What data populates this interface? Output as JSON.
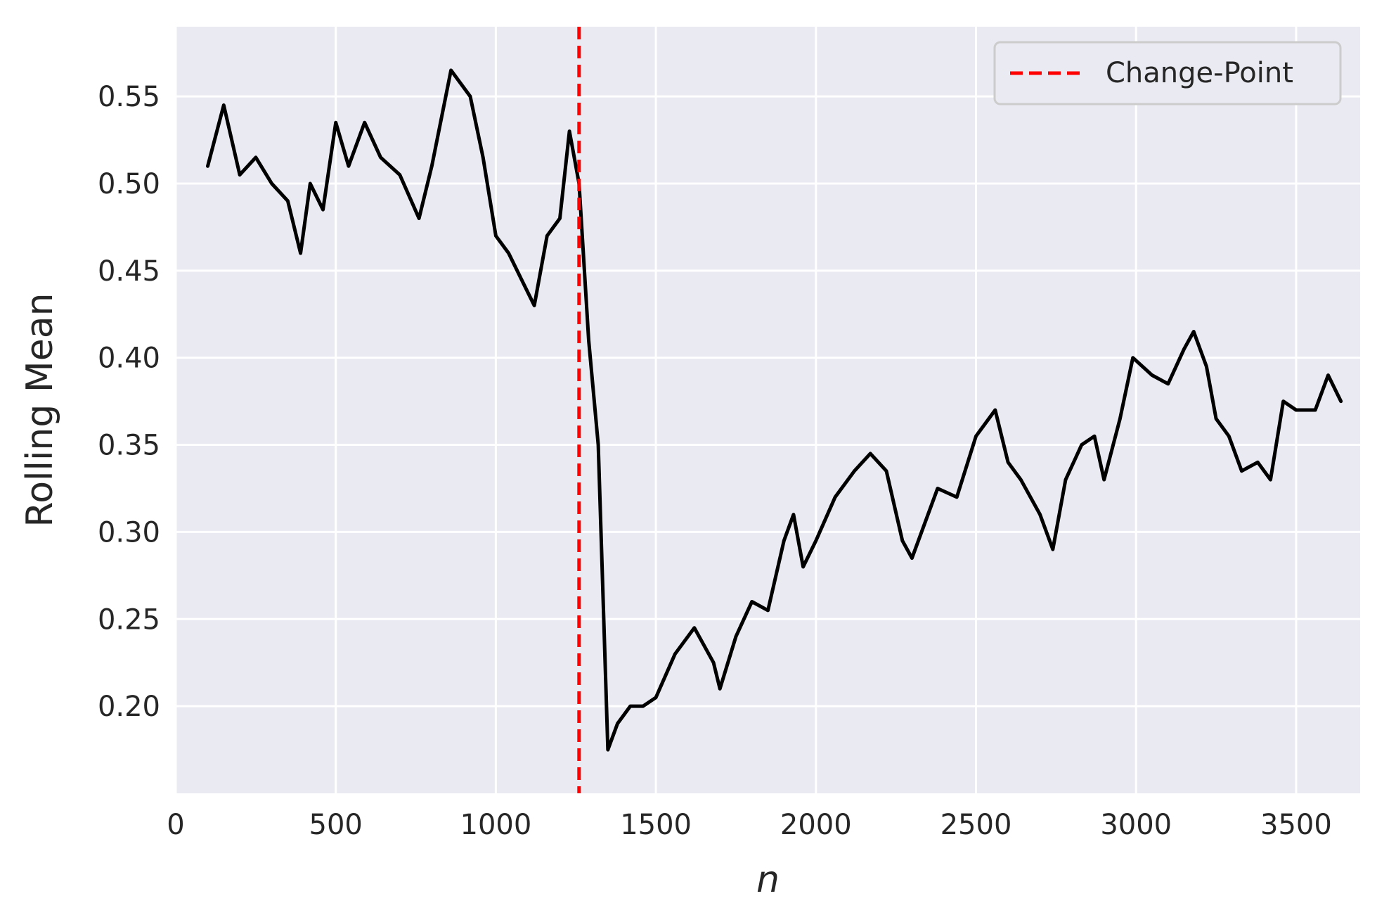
{
  "chart_data": {
    "type": "line",
    "title": "",
    "xlabel": "n",
    "ylabel": "Rolling Mean",
    "xlim": [
      0,
      3700
    ],
    "ylim": [
      0.15,
      0.59
    ],
    "xticks": [
      0,
      500,
      1000,
      1500,
      2000,
      2500,
      3000,
      3500
    ],
    "xtick_labels": [
      "0",
      "500",
      "1000",
      "1500",
      "2000",
      "2500",
      "3000",
      "3500"
    ],
    "yticks": [
      0.2,
      0.25,
      0.3,
      0.35,
      0.4,
      0.45,
      0.5,
      0.55
    ],
    "ytick_labels": [
      "0.20",
      "0.25",
      "0.30",
      "0.35",
      "0.40",
      "0.45",
      "0.50",
      "0.55"
    ],
    "grid": true,
    "legend_position": "top-right",
    "series": [
      {
        "color": "#000000",
        "x": [
          100,
          150,
          200,
          250,
          300,
          350,
          390,
          420,
          460,
          500,
          540,
          590,
          640,
          700,
          760,
          800,
          860,
          920,
          960,
          1000,
          1040,
          1080,
          1120,
          1160,
          1200,
          1230,
          1260,
          1290,
          1320,
          1350,
          1380,
          1420,
          1460,
          1500,
          1560,
          1620,
          1680,
          1700,
          1750,
          1800,
          1850,
          1900,
          1930,
          1960,
          2000,
          2060,
          2120,
          2170,
          2220,
          2270,
          2300,
          2330,
          2380,
          2440,
          2500,
          2560,
          2600,
          2640,
          2700,
          2740,
          2780,
          2830,
          2870,
          2900,
          2950,
          2990,
          3050,
          3100,
          3150,
          3180,
          3220,
          3250,
          3290,
          3330,
          3380,
          3420,
          3460,
          3500,
          3560,
          3600,
          3640
        ],
        "y": [
          0.51,
          0.545,
          0.505,
          0.515,
          0.5,
          0.49,
          0.46,
          0.5,
          0.485,
          0.535,
          0.51,
          0.535,
          0.515,
          0.505,
          0.48,
          0.51,
          0.565,
          0.55,
          0.515,
          0.47,
          0.46,
          0.445,
          0.43,
          0.47,
          0.48,
          0.53,
          0.5,
          0.41,
          0.35,
          0.175,
          0.19,
          0.2,
          0.2,
          0.205,
          0.23,
          0.245,
          0.225,
          0.21,
          0.24,
          0.26,
          0.255,
          0.295,
          0.31,
          0.28,
          0.295,
          0.32,
          0.335,
          0.345,
          0.335,
          0.295,
          0.285,
          0.3,
          0.325,
          0.32,
          0.355,
          0.37,
          0.34,
          0.33,
          0.31,
          0.29,
          0.33,
          0.35,
          0.355,
          0.33,
          0.365,
          0.4,
          0.39,
          0.385,
          0.405,
          0.415,
          0.395,
          0.365,
          0.355,
          0.335,
          0.34,
          0.33,
          0.375,
          0.37,
          0.37,
          0.39,
          0.375
        ]
      }
    ],
    "annotations": [
      {
        "type": "vline",
        "x": 1260,
        "color": "#ff0000",
        "label": "Change-Point"
      }
    ],
    "colors": {
      "plot_background": "#eaeaf2",
      "grid": "#ffffff",
      "series": "#000000",
      "change_point": "#ff0000",
      "text": "#262626"
    }
  }
}
